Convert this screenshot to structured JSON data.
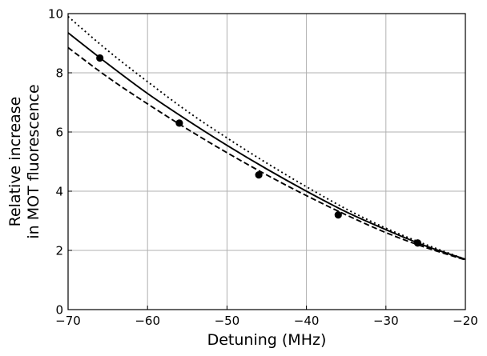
{
  "chart_data": {
    "type": "line",
    "xlabel": "Detuning (MHz)",
    "ylabel": [
      "Relative increase",
      "in MOT fluorescence"
    ],
    "xlim": [
      -70,
      -20
    ],
    "ylim": [
      0,
      10
    ],
    "xticks": [
      -70,
      -60,
      -50,
      -40,
      -30,
      -20
    ],
    "yticks": [
      0,
      2,
      4,
      6,
      8,
      10
    ],
    "xtick_labels": [
      "−70",
      "−60",
      "−50",
      "−40",
      "−30",
      "−20"
    ],
    "ytick_labels": [
      "0",
      "2",
      "4",
      "6",
      "8",
      "10"
    ],
    "grid": true,
    "series": [
      {
        "style": "solid",
        "x": [
          -70,
          -65,
          -60,
          -55,
          -50,
          -45,
          -40,
          -35,
          -30,
          -25,
          -20
        ],
        "y": [
          9.35,
          8.3,
          7.3,
          6.4,
          5.55,
          4.75,
          4.0,
          3.3,
          2.7,
          2.15,
          1.7
        ]
      },
      {
        "style": "dotted",
        "x": [
          -70,
          -65,
          -60,
          -55,
          -50,
          -45,
          -40,
          -35,
          -30,
          -25,
          -20
        ],
        "y": [
          9.9,
          8.75,
          7.7,
          6.7,
          5.8,
          4.95,
          4.15,
          3.4,
          2.75,
          2.2,
          1.7
        ]
      },
      {
        "style": "dashed",
        "x": [
          -70,
          -65,
          -60,
          -55,
          -50,
          -45,
          -40,
          -35,
          -30,
          -25,
          -20
        ],
        "y": [
          8.85,
          7.85,
          6.95,
          6.1,
          5.3,
          4.55,
          3.85,
          3.2,
          2.6,
          2.1,
          1.68
        ]
      },
      {
        "style": "markers",
        "x": [
          -66,
          -56,
          -46,
          -36,
          -26
        ],
        "y": [
          8.5,
          6.3,
          4.55,
          3.2,
          2.25
        ]
      }
    ]
  }
}
